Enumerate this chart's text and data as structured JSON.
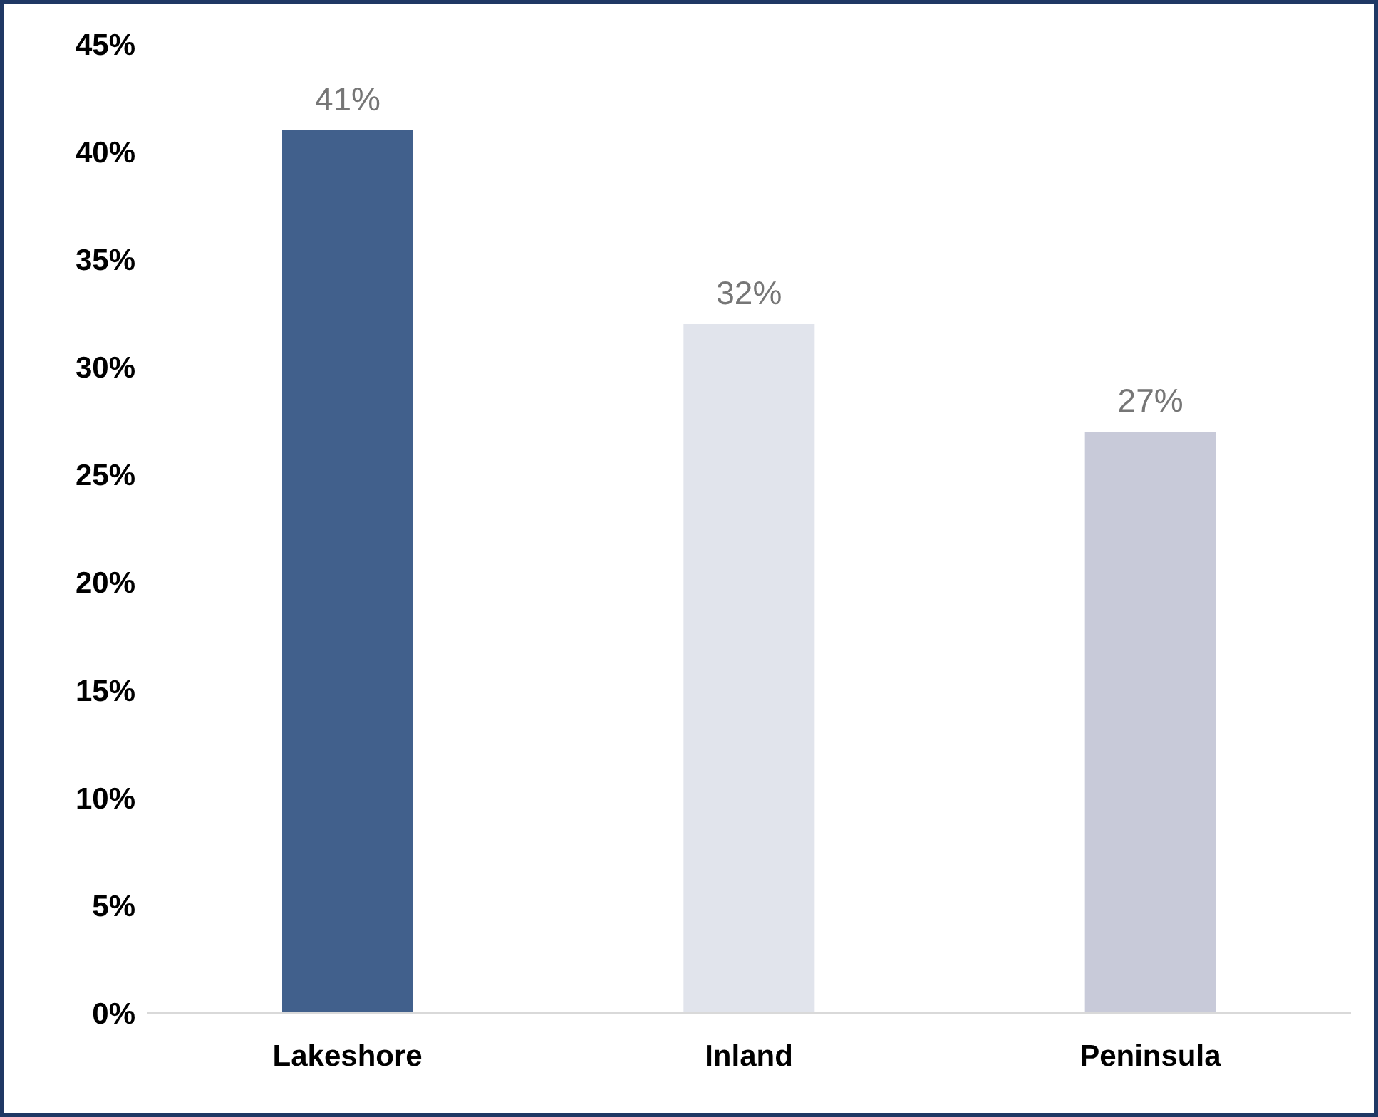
{
  "chart_data": {
    "type": "bar",
    "categories": [
      "Lakeshore",
      "Inland",
      "Peninsula"
    ],
    "values": [
      41,
      32,
      27
    ],
    "colors": [
      "#41608c",
      "#e1e4ec",
      "#c8cad9"
    ],
    "value_labels": [
      "41%",
      "32%",
      "27%"
    ],
    "ylim": [
      0,
      45
    ],
    "yticks": [
      {
        "value": 0,
        "label": "0%"
      },
      {
        "value": 5,
        "label": "5%"
      },
      {
        "value": 10,
        "label": "10%"
      },
      {
        "value": 15,
        "label": "15%"
      },
      {
        "value": 20,
        "label": "20%"
      },
      {
        "value": 25,
        "label": "25%"
      },
      {
        "value": 30,
        "label": "30%"
      },
      {
        "value": 35,
        "label": "35%"
      },
      {
        "value": 40,
        "label": "40%"
      },
      {
        "value": 45,
        "label": "45%"
      }
    ],
    "grid": false,
    "legend": false
  }
}
